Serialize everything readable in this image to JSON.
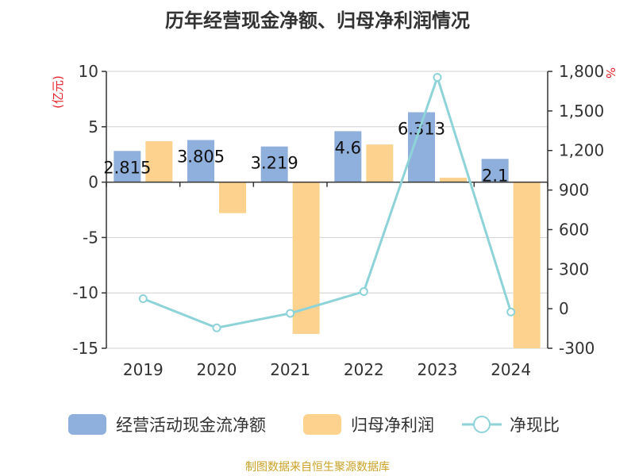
{
  "title": "历年经营现金净额、归母净利润情况",
  "source": "制图数据来自恒生聚源数据库",
  "colors": {
    "cash": "#8fb0dc",
    "profit": "#fdd28e",
    "ratio": "#8dd3d8",
    "grid": "#d0d0d0",
    "unit": "#e8202a",
    "source": "#c9a227"
  },
  "chart_data": {
    "type": "bar",
    "title": "历年经营现金净额、归母净利润情况",
    "categories": [
      "2019",
      "2020",
      "2021",
      "2022",
      "2023",
      "2024"
    ],
    "y_left": {
      "label": "(亿元)",
      "range": [
        -15,
        10
      ],
      "ticks": [
        10,
        5,
        0,
        -5,
        -10,
        -15
      ],
      "tick_labels": [
        "10",
        "5",
        "0",
        "-5",
        "-10",
        "-15"
      ]
    },
    "y_right": {
      "label": "%",
      "range": [
        -300,
        1800
      ],
      "ticks": [
        1800,
        1500,
        1200,
        900,
        600,
        300,
        0,
        -300
      ],
      "tick_labels": [
        "1,800",
        "1,500",
        "1,200",
        "900",
        "600",
        "300",
        "0",
        "-300"
      ]
    },
    "series": [
      {
        "name": "经营活动现金流净额",
        "type": "bar",
        "axis": "left",
        "values": [
          2.815,
          3.805,
          3.219,
          4.6,
          6.313,
          2.1
        ],
        "labels": [
          "2.815",
          "3.805",
          "3.219",
          "4.6",
          "6.313",
          "2.1"
        ]
      },
      {
        "name": "归母净利润",
        "type": "bar",
        "axis": "left",
        "values": [
          3.7,
          -2.8,
          -13.7,
          3.4,
          0.4,
          -15
        ]
      },
      {
        "name": "净现比",
        "type": "line",
        "axis": "right",
        "values": [
          76,
          -145,
          -35,
          130,
          1755,
          -25
        ]
      }
    ],
    "legend": [
      "经营活动现金流净额",
      "归母净利润",
      "净现比"
    ],
    "legend_position": "bottom",
    "grid": true
  }
}
